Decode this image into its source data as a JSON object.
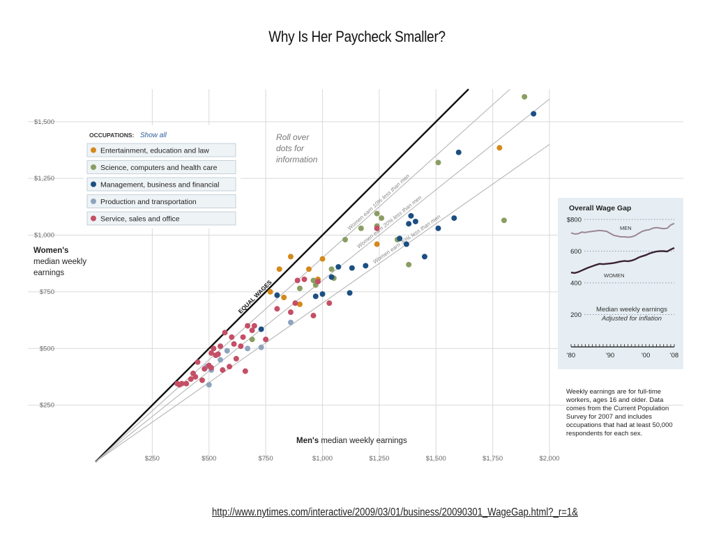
{
  "slide": {
    "title": "Why Is Her Paycheck Smaller?",
    "source_url": "http://www.nytimes.com/interactive/2009/03/01/business/20090301_WageGap.html?_r=1&"
  },
  "colors": {
    "entertainment": "#d4891c",
    "science": "#8a9e63",
    "management": "#1b4f82",
    "production": "#8ea4bd",
    "service": "#c44f66",
    "axis_text": "#666666",
    "grid": "#d9d9d9",
    "equal_line": "#111111",
    "ratio_line": "#b5b5b5",
    "inset_bg": "#e6eef3",
    "legend_bg": "#eef3f6",
    "show_all": "#2c5d9a",
    "men_line": "#9b8696",
    "women_line": "#3a2233"
  },
  "chart_data": [
    {
      "type": "scatter",
      "title": "",
      "xlabel_bold": "Men's",
      "xlabel_rest": " median weekly earnings",
      "ylabel_lines": [
        "Women's",
        "median weekly",
        "earnings"
      ],
      "xlim": [
        0,
        2000
      ],
      "ylim": [
        0,
        1650
      ],
      "x_ticks": [
        250,
        500,
        750,
        1000,
        1250,
        1500,
        1750,
        2000
      ],
      "x_tick_labels": [
        "$250",
        "$500",
        "$750",
        "$1,000",
        "$1,250",
        "$1,500",
        "$1,750",
        "$2,000"
      ],
      "y_ticks": [
        250,
        500,
        750,
        1000,
        1250,
        1500
      ],
      "y_tick_labels": [
        "$250",
        "$500",
        "$750",
        "$1,000",
        "$1,250",
        "$1,500"
      ],
      "grid": true,
      "reference_lines": [
        {
          "ratio": 1.0,
          "label": "EQUAL WAGES",
          "bold": true
        },
        {
          "ratio": 0.9,
          "label": "Women earn 10% less than men"
        },
        {
          "ratio": 0.8,
          "label": "Women earn 20% less than men"
        },
        {
          "ratio": 0.7,
          "label": "Women earn 30% less than men"
        }
      ],
      "annotation": [
        "Roll over",
        "dots for",
        "information"
      ],
      "legend": {
        "heading": "OCCUPATIONS:",
        "show_all": "Show all",
        "items": [
          {
            "key": "entertainment",
            "label": "Entertainment, education and law"
          },
          {
            "key": "science",
            "label": "Science, computers and health care"
          },
          {
            "key": "management",
            "label": "Management, business and financial"
          },
          {
            "key": "production",
            "label": "Production and transportation"
          },
          {
            "key": "service",
            "label": "Service, sales and office"
          }
        ]
      },
      "series": [
        {
          "key": "entertainment",
          "points": [
            [
              770,
              750
            ],
            [
              810,
              850
            ],
            [
              830,
              725
            ],
            [
              860,
              905
            ],
            [
              900,
              695
            ],
            [
              940,
              850
            ],
            [
              980,
              805
            ],
            [
              1000,
              895
            ],
            [
              1240,
              960
            ],
            [
              1780,
              1385
            ]
          ]
        },
        {
          "key": "science",
          "points": [
            [
              690,
              540
            ],
            [
              900,
              765
            ],
            [
              960,
              800
            ],
            [
              970,
              780
            ],
            [
              1040,
              850
            ],
            [
              1050,
              810
            ],
            [
              1100,
              980
            ],
            [
              1170,
              1030
            ],
            [
              1240,
              1040
            ],
            [
              1240,
              1095
            ],
            [
              1260,
              1075
            ],
            [
              1330,
              980
            ],
            [
              1380,
              870
            ],
            [
              1510,
              1320
            ],
            [
              1800,
              1065
            ],
            [
              1890,
              1610
            ]
          ]
        },
        {
          "key": "management",
          "points": [
            [
              730,
              585
            ],
            [
              800,
              735
            ],
            [
              970,
              730
            ],
            [
              1000,
              740
            ],
            [
              1040,
              815
            ],
            [
              1070,
              860
            ],
            [
              1120,
              745
            ],
            [
              1130,
              855
            ],
            [
              1190,
              865
            ],
            [
              1340,
              985
            ],
            [
              1370,
              960
            ],
            [
              1380,
              1050
            ],
            [
              1390,
              1085
            ],
            [
              1410,
              1060
            ],
            [
              1450,
              905
            ],
            [
              1510,
              1030
            ],
            [
              1580,
              1075
            ],
            [
              1600,
              1365
            ],
            [
              1930,
              1535
            ]
          ]
        },
        {
          "key": "production",
          "points": [
            [
              490,
              420
            ],
            [
              500,
              340
            ],
            [
              510,
              405
            ],
            [
              550,
              450
            ],
            [
              580,
              490
            ],
            [
              670,
              500
            ],
            [
              730,
              505
            ],
            [
              860,
              615
            ]
          ]
        },
        {
          "key": "service",
          "points": [
            [
              360,
              345
            ],
            [
              370,
              340
            ],
            [
              380,
              345
            ],
            [
              400,
              345
            ],
            [
              420,
              365
            ],
            [
              430,
              390
            ],
            [
              440,
              375
            ],
            [
              450,
              440
            ],
            [
              470,
              360
            ],
            [
              480,
              410
            ],
            [
              500,
              425
            ],
            [
              510,
              415
            ],
            [
              510,
              480
            ],
            [
              520,
              500
            ],
            [
              530,
              470
            ],
            [
              540,
              475
            ],
            [
              550,
              510
            ],
            [
              560,
              405
            ],
            [
              570,
              570
            ],
            [
              590,
              420
            ],
            [
              600,
              550
            ],
            [
              610,
              520
            ],
            [
              620,
              455
            ],
            [
              640,
              510
            ],
            [
              650,
              550
            ],
            [
              660,
              400
            ],
            [
              670,
              600
            ],
            [
              690,
              580
            ],
            [
              700,
              600
            ],
            [
              750,
              540
            ],
            [
              800,
              675
            ],
            [
              860,
              660
            ],
            [
              880,
              700
            ],
            [
              890,
              800
            ],
            [
              920,
              805
            ],
            [
              960,
              645
            ],
            [
              980,
              795
            ],
            [
              1030,
              700
            ],
            [
              1240,
              1030
            ]
          ]
        }
      ]
    },
    {
      "type": "line",
      "title": "Overall Wage Gap",
      "y_ticks": [
        800,
        600,
        400,
        200
      ],
      "y_tick_labels": [
        "$800",
        "600",
        "400",
        "200"
      ],
      "ylim": [
        150,
        820
      ],
      "xlim": [
        1979,
        2008
      ],
      "x_tick_labels": [
        "'80",
        "'90",
        "'00",
        "'08"
      ],
      "x_ticks": [
        1979,
        1990,
        2000,
        2008
      ],
      "note_lines": [
        "Median weekly earnings",
        "Adjusted for inflation"
      ],
      "grid": true,
      "series": [
        {
          "name": "MEN",
          "x": [
            1979,
            1980,
            1981,
            1982,
            1983,
            1984,
            1985,
            1986,
            1987,
            1988,
            1989,
            1990,
            1991,
            1992,
            1993,
            1994,
            1995,
            1996,
            1997,
            1998,
            1999,
            2000,
            2001,
            2002,
            2003,
            2004,
            2005,
            2006,
            2007,
            2008
          ],
          "values": [
            715,
            708,
            710,
            720,
            718,
            722,
            725,
            728,
            730,
            728,
            725,
            712,
            700,
            695,
            690,
            690,
            688,
            690,
            698,
            712,
            725,
            732,
            735,
            745,
            748,
            745,
            742,
            744,
            765,
            775
          ]
        },
        {
          "name": "WOMEN",
          "x": [
            1979,
            1980,
            1981,
            1982,
            1983,
            1984,
            1985,
            1986,
            1987,
            1988,
            1989,
            1990,
            1991,
            1992,
            1993,
            1994,
            1995,
            1996,
            1997,
            1998,
            1999,
            2000,
            2001,
            2002,
            2003,
            2004,
            2005,
            2006,
            2007,
            2008
          ],
          "values": [
            465,
            462,
            468,
            478,
            488,
            497,
            505,
            513,
            520,
            518,
            520,
            522,
            525,
            530,
            535,
            538,
            536,
            540,
            548,
            560,
            568,
            575,
            585,
            592,
            598,
            600,
            600,
            598,
            610,
            620
          ]
        }
      ]
    }
  ],
  "footnote": [
    "Weekly earnings are for full-time",
    "workers, ages 16 and older. Data",
    "comes from the Current Population",
    "Survey for 2007 and includes",
    "occupations that had at least 50,000",
    "respondents for each sex."
  ]
}
